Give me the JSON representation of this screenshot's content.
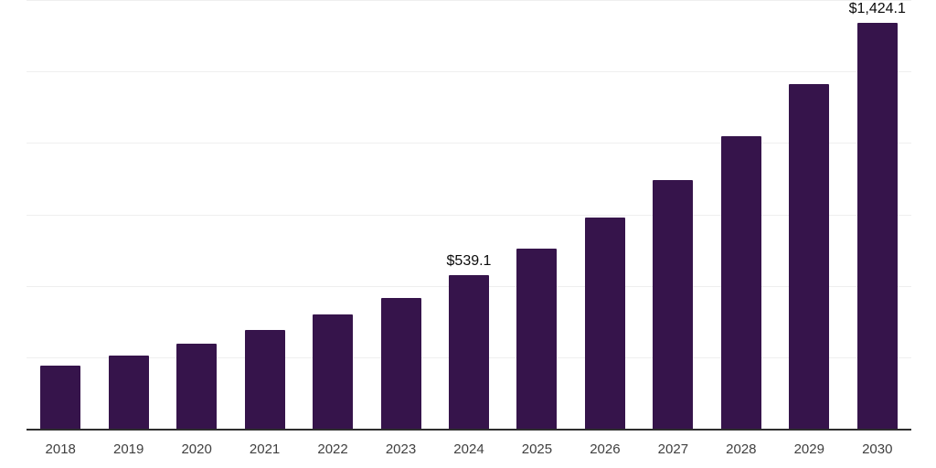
{
  "chart_data": {
    "type": "bar",
    "title": "",
    "xlabel": "",
    "ylabel": "",
    "categories": [
      "2018",
      "2019",
      "2020",
      "2021",
      "2022",
      "2023",
      "2024",
      "2025",
      "2026",
      "2027",
      "2028",
      "2029",
      "2030"
    ],
    "values": [
      224,
      259,
      301,
      349,
      403,
      461,
      539.1,
      634,
      741,
      873,
      1027,
      1210,
      1424.1
    ],
    "point_labels": [
      "",
      "",
      "",
      "",
      "",
      "",
      "$539.1",
      "",
      "",
      "",
      "",
      "",
      "$1,424.1"
    ],
    "ylim": [
      0,
      1500
    ],
    "gridline_step": 250,
    "grid": "horizontal-only",
    "y_tick_labels_visible": false,
    "legend": "none",
    "bar_color": "#36144B",
    "gridline_color": "#efefef",
    "axis_line_color": "#2e2e2e",
    "tick_label_color": "#3f3f3f",
    "value_label_color": "#0a0a0a"
  }
}
